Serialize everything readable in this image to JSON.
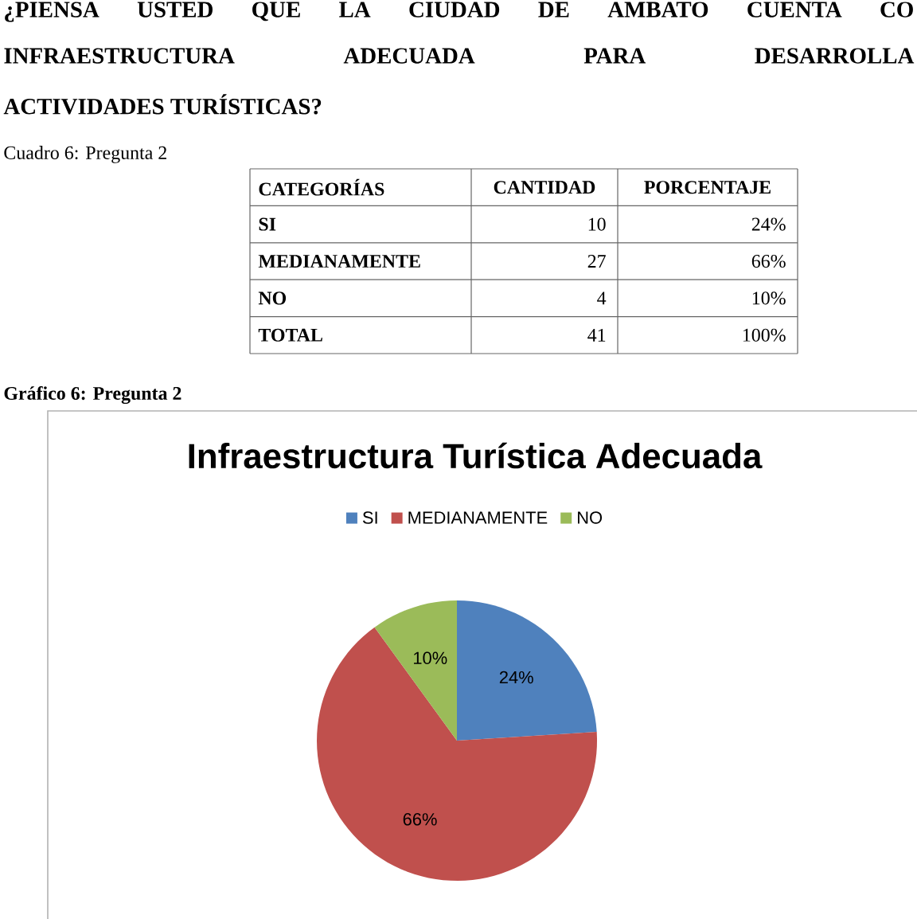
{
  "chart_data": {
    "type": "pie",
    "title": "Infraestructura Turística  Adecuada",
    "categories": [
      "SI",
      "MEDIANAMENTE",
      "NO"
    ],
    "values": [
      24,
      66,
      10
    ],
    "colors": [
      "#4f81bd",
      "#c0504d",
      "#9bbb59"
    ],
    "value_labels": [
      "24%",
      "66%",
      "10%"
    ],
    "legend": "top",
    "annotations": [
      "¿PIENSA USTED QUE LA CIUDAD DE AMBATO CUENTA CO",
      "INFRAESTRUCTURA ADECUADA PARA DESARROLLA",
      "ACTIVIDADES TURÍSTICAS?",
      "Cuadro 6: Pregunta  2",
      "CATEGORÍAS",
      "CANTIDAD",
      "PORCENTAJE",
      "SI",
      "10",
      "24%",
      "MEDIANAMENTE",
      "27",
      "66%",
      "NO",
      "4",
      "10%",
      "TOTAL",
      "41",
      "100%",
      "Gráfico 6: Pregunta 2"
    ]
  }
}
